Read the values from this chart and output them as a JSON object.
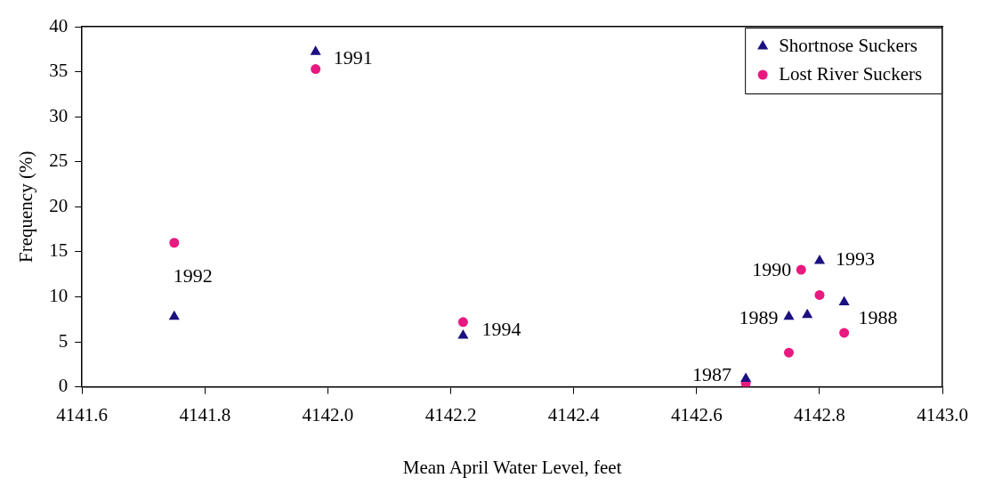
{
  "chart_data": {
    "type": "scatter",
    "xlabel": "Mean April Water Level, feet",
    "ylabel": "Frequency (%)",
    "xlim": [
      4141.6,
      4143.0
    ],
    "xticks": [
      {
        "value": 4141.6,
        "label": "4141.6"
      },
      {
        "value": 4141.8,
        "label": "4141.8"
      },
      {
        "value": 4142.0,
        "label": "4142.0"
      },
      {
        "value": 4142.2,
        "label": "4142.2"
      },
      {
        "value": 4142.4,
        "label": "4142.4"
      },
      {
        "value": 4142.6,
        "label": "4142.6"
      },
      {
        "value": 4142.8,
        "label": "4142.8"
      },
      {
        "value": 4143.0,
        "label": "4143.0"
      }
    ],
    "ylim": [
      0,
      40
    ],
    "yticks": [
      0,
      5,
      10,
      15,
      20,
      25,
      30,
      35,
      40
    ],
    "grid": false,
    "legend": "top right",
    "series": [
      {
        "name": "Shortnose Suckers",
        "color": "#1c1080",
        "marker": "triangle",
        "x": [
          4141.75,
          4141.98,
          4142.22,
          4142.68,
          4142.75,
          4142.78,
          4142.8,
          4142.84
        ],
        "values": [
          7.8,
          37.2,
          5.7,
          0.9,
          7.8,
          8.0,
          14.0,
          9.4
        ]
      },
      {
        "name": "Lost River Suckers",
        "color": "#e8197f",
        "marker": "circle",
        "x": [
          4141.75,
          4141.98,
          4142.22,
          4142.68,
          4142.75,
          4142.77,
          4142.8,
          4142.84
        ],
        "values": [
          16.0,
          35.3,
          7.2,
          0.4,
          3.8,
          13.0,
          10.2,
          6.0
        ]
      }
    ],
    "annotations": [
      {
        "text": "1991",
        "x": 4141.98,
        "y": 37.2
      },
      {
        "text": "1992",
        "x": 4141.75,
        "y": 7.8
      },
      {
        "text": "1994",
        "x": 4142.22,
        "y": 5.7
      },
      {
        "text": "1993",
        "x": 4142.8,
        "y": 14.0
      },
      {
        "text": "1990",
        "x": 4142.77,
        "y": 13.0
      },
      {
        "text": "1989",
        "x": 4142.75,
        "y": 7.8
      },
      {
        "text": "1988",
        "x": 4142.84,
        "y": 6.0
      },
      {
        "text": "1987",
        "x": 4142.68,
        "y": 0.9
      }
    ]
  }
}
